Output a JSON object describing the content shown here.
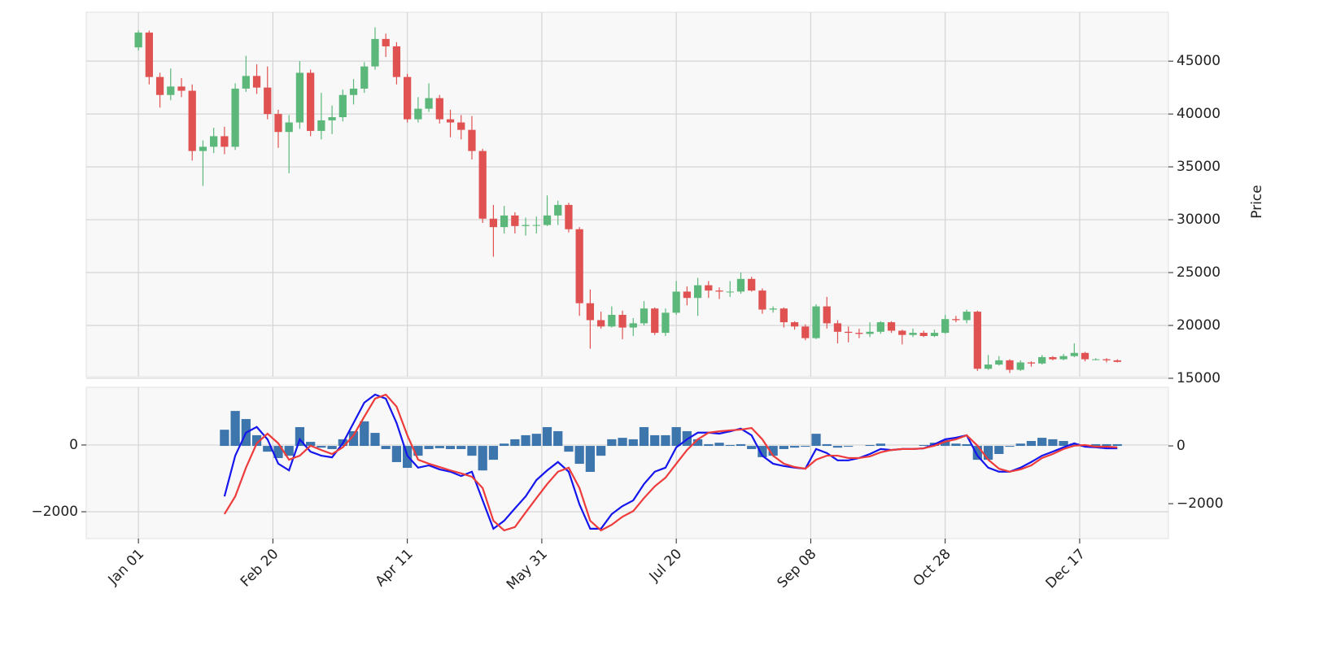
{
  "chart_data": [
    {
      "type": "candlestick",
      "x": [
        0,
        4,
        8,
        12,
        16,
        20,
        24,
        28,
        32,
        36,
        40,
        44,
        48,
        52,
        56,
        60,
        64,
        68,
        72,
        76,
        80,
        84,
        88,
        92,
        96,
        100,
        104,
        108,
        112,
        116,
        120,
        124,
        128,
        132,
        136,
        140,
        144,
        148,
        152,
        156,
        160,
        164,
        168,
        172,
        176,
        180,
        184,
        188,
        192,
        196,
        200,
        204,
        208,
        212,
        216,
        220,
        224,
        228,
        232,
        236,
        240,
        244,
        248,
        252,
        256,
        260,
        264,
        268,
        272,
        276,
        280,
        284,
        288,
        292,
        296,
        300,
        304,
        308,
        312,
        316,
        320,
        324,
        328,
        332,
        336,
        340,
        344,
        348,
        352,
        356,
        360,
        364
      ],
      "open": [
        46300,
        47700,
        43500,
        41800,
        42600,
        42200,
        36500,
        36900,
        37900,
        36900,
        42400,
        43600,
        42500,
        40000,
        38300,
        39200,
        43900,
        38400,
        39400,
        39700,
        41800,
        42400,
        44500,
        47100,
        46400,
        43500,
        39500,
        40500,
        41500,
        39500,
        39200,
        38500,
        36500,
        30100,
        29300,
        30400,
        29400,
        29500,
        29500,
        30400,
        31400,
        29100,
        22100,
        20500,
        19900,
        21000,
        19800,
        20200,
        21600,
        19300,
        21200,
        23200,
        22600,
        23800,
        23300,
        23200,
        23200,
        24400,
        23300,
        21500,
        21600,
        20300,
        19900,
        18800,
        21800,
        20200,
        19400,
        19300,
        19200,
        19400,
        20300,
        19500,
        19100,
        19300,
        19000,
        19300,
        20600,
        20500,
        21300,
        15900,
        16300,
        16700,
        15800,
        16500,
        16400,
        17000,
        16800,
        17100,
        17400,
        16800,
        16800,
        16700
      ],
      "high": [
        47900,
        47900,
        43900,
        44300,
        43400,
        42800,
        37500,
        38700,
        38800,
        42900,
        45500,
        44700,
        44500,
        40400,
        39900,
        45000,
        44200,
        42000,
        40800,
        42300,
        43300,
        44900,
        48200,
        47600,
        46800,
        43800,
        41600,
        42900,
        41800,
        40400,
        39900,
        39800,
        36700,
        31400,
        31300,
        30700,
        30200,
        30300,
        32300,
        31800,
        31600,
        29300,
        23400,
        21300,
        21800,
        21400,
        20700,
        22300,
        21700,
        21600,
        24200,
        23700,
        24500,
        24200,
        23600,
        24200,
        25000,
        24600,
        23500,
        21800,
        21700,
        20400,
        20100,
        22000,
        22700,
        20500,
        19900,
        19700,
        20300,
        20400,
        20400,
        19600,
        19700,
        19500,
        19600,
        21000,
        20900,
        21500,
        21400,
        17200,
        17100,
        16800,
        16700,
        16600,
        17200,
        17100,
        17300,
        18300,
        17500,
        16900,
        16900,
        16800
      ],
      "low": [
        46000,
        42800,
        40600,
        41300,
        41600,
        35600,
        33200,
        36300,
        36200,
        36600,
        42100,
        41900,
        39500,
        36800,
        34400,
        38600,
        37900,
        37600,
        38100,
        39300,
        40900,
        42000,
        44200,
        45400,
        42800,
        39200,
        39200,
        40200,
        39100,
        37800,
        37600,
        35700,
        29700,
        26500,
        28700,
        28700,
        28500,
        28700,
        29400,
        29500,
        28800,
        20900,
        17800,
        19700,
        19800,
        18700,
        19000,
        20000,
        19100,
        19000,
        21000,
        21900,
        20900,
        22600,
        22500,
        22700,
        23000,
        23200,
        21100,
        21200,
        19800,
        19600,
        18600,
        18700,
        19700,
        18300,
        18400,
        18800,
        18900,
        19200,
        19300,
        18200,
        18900,
        18900,
        18900,
        19200,
        20300,
        20200,
        15700,
        15800,
        16200,
        15500,
        15700,
        16100,
        16300,
        16700,
        16700,
        17000,
        16600,
        16700,
        16500,
        16500
      ],
      "close": [
        47700,
        43500,
        41800,
        42600,
        42200,
        36500,
        36900,
        37900,
        36900,
        42400,
        43600,
        42500,
        40000,
        38300,
        39200,
        43900,
        38400,
        39400,
        39700,
        41800,
        42400,
        44500,
        47100,
        46400,
        43500,
        39500,
        40500,
        41500,
        39500,
        39200,
        38500,
        36500,
        30100,
        29300,
        30400,
        29400,
        29500,
        29500,
        30400,
        31400,
        29100,
        22100,
        20500,
        19900,
        21000,
        19800,
        20200,
        21600,
        19300,
        21200,
        23200,
        22600,
        23800,
        23300,
        23200,
        23200,
        24400,
        23300,
        21500,
        21600,
        20300,
        19900,
        18800,
        21800,
        20200,
        19400,
        19300,
        19200,
        19400,
        20300,
        19500,
        19100,
        19300,
        19000,
        19300,
        20600,
        20500,
        21300,
        15900,
        16300,
        16700,
        15800,
        16500,
        16400,
        17000,
        16800,
        17100,
        17400,
        16800,
        16800,
        16700,
        16550
      ],
      "up_color": "#5cb87a",
      "down_color": "#e05252",
      "xlim": [
        -19.4,
        383
      ],
      "ylim": [
        15150,
        49630
      ],
      "yticks": [
        15000,
        20000,
        25000,
        30000,
        35000,
        40000,
        45000
      ],
      "ylabel": "Price",
      "grid": true
    },
    {
      "type": "line",
      "x": [
        0,
        4,
        8,
        12,
        16,
        20,
        24,
        28,
        32,
        36,
        40,
        44,
        48,
        52,
        56,
        60,
        64,
        68,
        72,
        76,
        80,
        84,
        88,
        92,
        96,
        100,
        104,
        108,
        112,
        116,
        120,
        124,
        128,
        132,
        136,
        140,
        144,
        148,
        152,
        156,
        160,
        164,
        168,
        172,
        176,
        180,
        184,
        188,
        192,
        196,
        200,
        204,
        208,
        212,
        216,
        220,
        224,
        228,
        232,
        236,
        240,
        244,
        248,
        252,
        256,
        260,
        264,
        268,
        272,
        276,
        280,
        284,
        288,
        292,
        296,
        300,
        304,
        308,
        312,
        316,
        320,
        324,
        328,
        332,
        336,
        340,
        344,
        348,
        352,
        356,
        360,
        364
      ],
      "series": [
        {
          "color": "#1515ee",
          "values": [
            null,
            null,
            null,
            null,
            null,
            null,
            null,
            null,
            -1540,
            -320,
            370,
            540,
            170,
            -560,
            -760,
            170,
            -200,
            -320,
            -370,
            50,
            660,
            1270,
            1510,
            1390,
            660,
            -320,
            -680,
            -610,
            -730,
            -800,
            -930,
            -800,
            -1660,
            -2510,
            -2270,
            -1900,
            -1540,
            -1050,
            -760,
            -510,
            -800,
            -1780,
            -2510,
            -2510,
            -2070,
            -1830,
            -1660,
            -1170,
            -800,
            -680,
            -70,
            170,
            370,
            370,
            340,
            410,
            490,
            290,
            -320,
            -560,
            -630,
            -680,
            -710,
            -120,
            -240,
            -460,
            -460,
            -390,
            -270,
            -120,
            -150,
            -120,
            -120,
            -100,
            20,
            170,
            220,
            290,
            -320,
            -680,
            -800,
            -800,
            -680,
            -510,
            -320,
            -200,
            -70,
            50,
            -50,
            -70,
            -100,
            -100
          ]
        },
        {
          "color": "#ee3b3b",
          "values": [
            null,
            null,
            null,
            null,
            null,
            null,
            null,
            null,
            -2070,
            -1540,
            -680,
            50,
            340,
            50,
            -440,
            -320,
            -20,
            -150,
            -270,
            -70,
            290,
            850,
            1390,
            1510,
            1150,
            290,
            -440,
            -560,
            -660,
            -760,
            -850,
            -950,
            -1290,
            -2270,
            -2560,
            -2460,
            -2020,
            -1590,
            -1170,
            -800,
            -680,
            -1290,
            -2270,
            -2560,
            -2390,
            -2150,
            -1980,
            -1590,
            -1240,
            -980,
            -560,
            -150,
            170,
            370,
            410,
            440,
            460,
            510,
            170,
            -320,
            -560,
            -660,
            -710,
            -440,
            -320,
            -320,
            -390,
            -390,
            -340,
            -220,
            -150,
            -120,
            -120,
            -100,
            -20,
            100,
            170,
            290,
            -20,
            -440,
            -710,
            -800,
            -730,
            -610,
            -390,
            -270,
            -120,
            -20,
            0,
            -50,
            -50,
            -70
          ]
        },
        {
          "type": "bar",
          "axis": "y2",
          "color": "#3d75ad",
          "values": [
            null,
            null,
            null,
            null,
            null,
            null,
            null,
            null,
            560,
            1210,
            930,
            370,
            -200,
            -420,
            -340,
            650,
            140,
            -60,
            -110,
            230,
            510,
            850,
            450,
            -110,
            -560,
            -760,
            -340,
            -110,
            -80,
            -110,
            -110,
            -340,
            -850,
            -480,
            80,
            230,
            370,
            420,
            650,
            510,
            -200,
            -620,
            -900,
            -340,
            230,
            280,
            230,
            650,
            370,
            370,
            650,
            510,
            230,
            60,
            110,
            30,
            60,
            -110,
            -390,
            -340,
            -110,
            -60,
            -30,
            420,
            60,
            -60,
            -30,
            0,
            30,
            80,
            0,
            0,
            0,
            30,
            110,
            200,
            80,
            60,
            -480,
            -480,
            -280,
            -30,
            80,
            170,
            280,
            230,
            170,
            80,
            -30,
            60,
            60,
            60
          ]
        }
      ],
      "xlim": [
        -19.4,
        383
      ],
      "xticks": [
        {
          "value": 0,
          "label": "Jan 01"
        },
        {
          "value": 50,
          "label": "Feb 20"
        },
        {
          "value": 100,
          "label": "Apr 11"
        },
        {
          "value": 150,
          "label": "May 31"
        },
        {
          "value": 200,
          "label": "Jul 20"
        },
        {
          "value": 250,
          "label": "Sep 08"
        },
        {
          "value": 300,
          "label": "Oct 28"
        },
        {
          "value": 350,
          "label": "Dec 17"
        }
      ],
      "ylim": [
        -2805,
        1730
      ],
      "yticks": [
        {
          "value": -2000,
          "label": "−2000"
        },
        0
      ],
      "y2lim": [
        -3210,
        2030
      ],
      "y2ticks": [
        {
          "value": -2000,
          "label": "−2000"
        },
        0
      ],
      "grid": true
    }
  ]
}
